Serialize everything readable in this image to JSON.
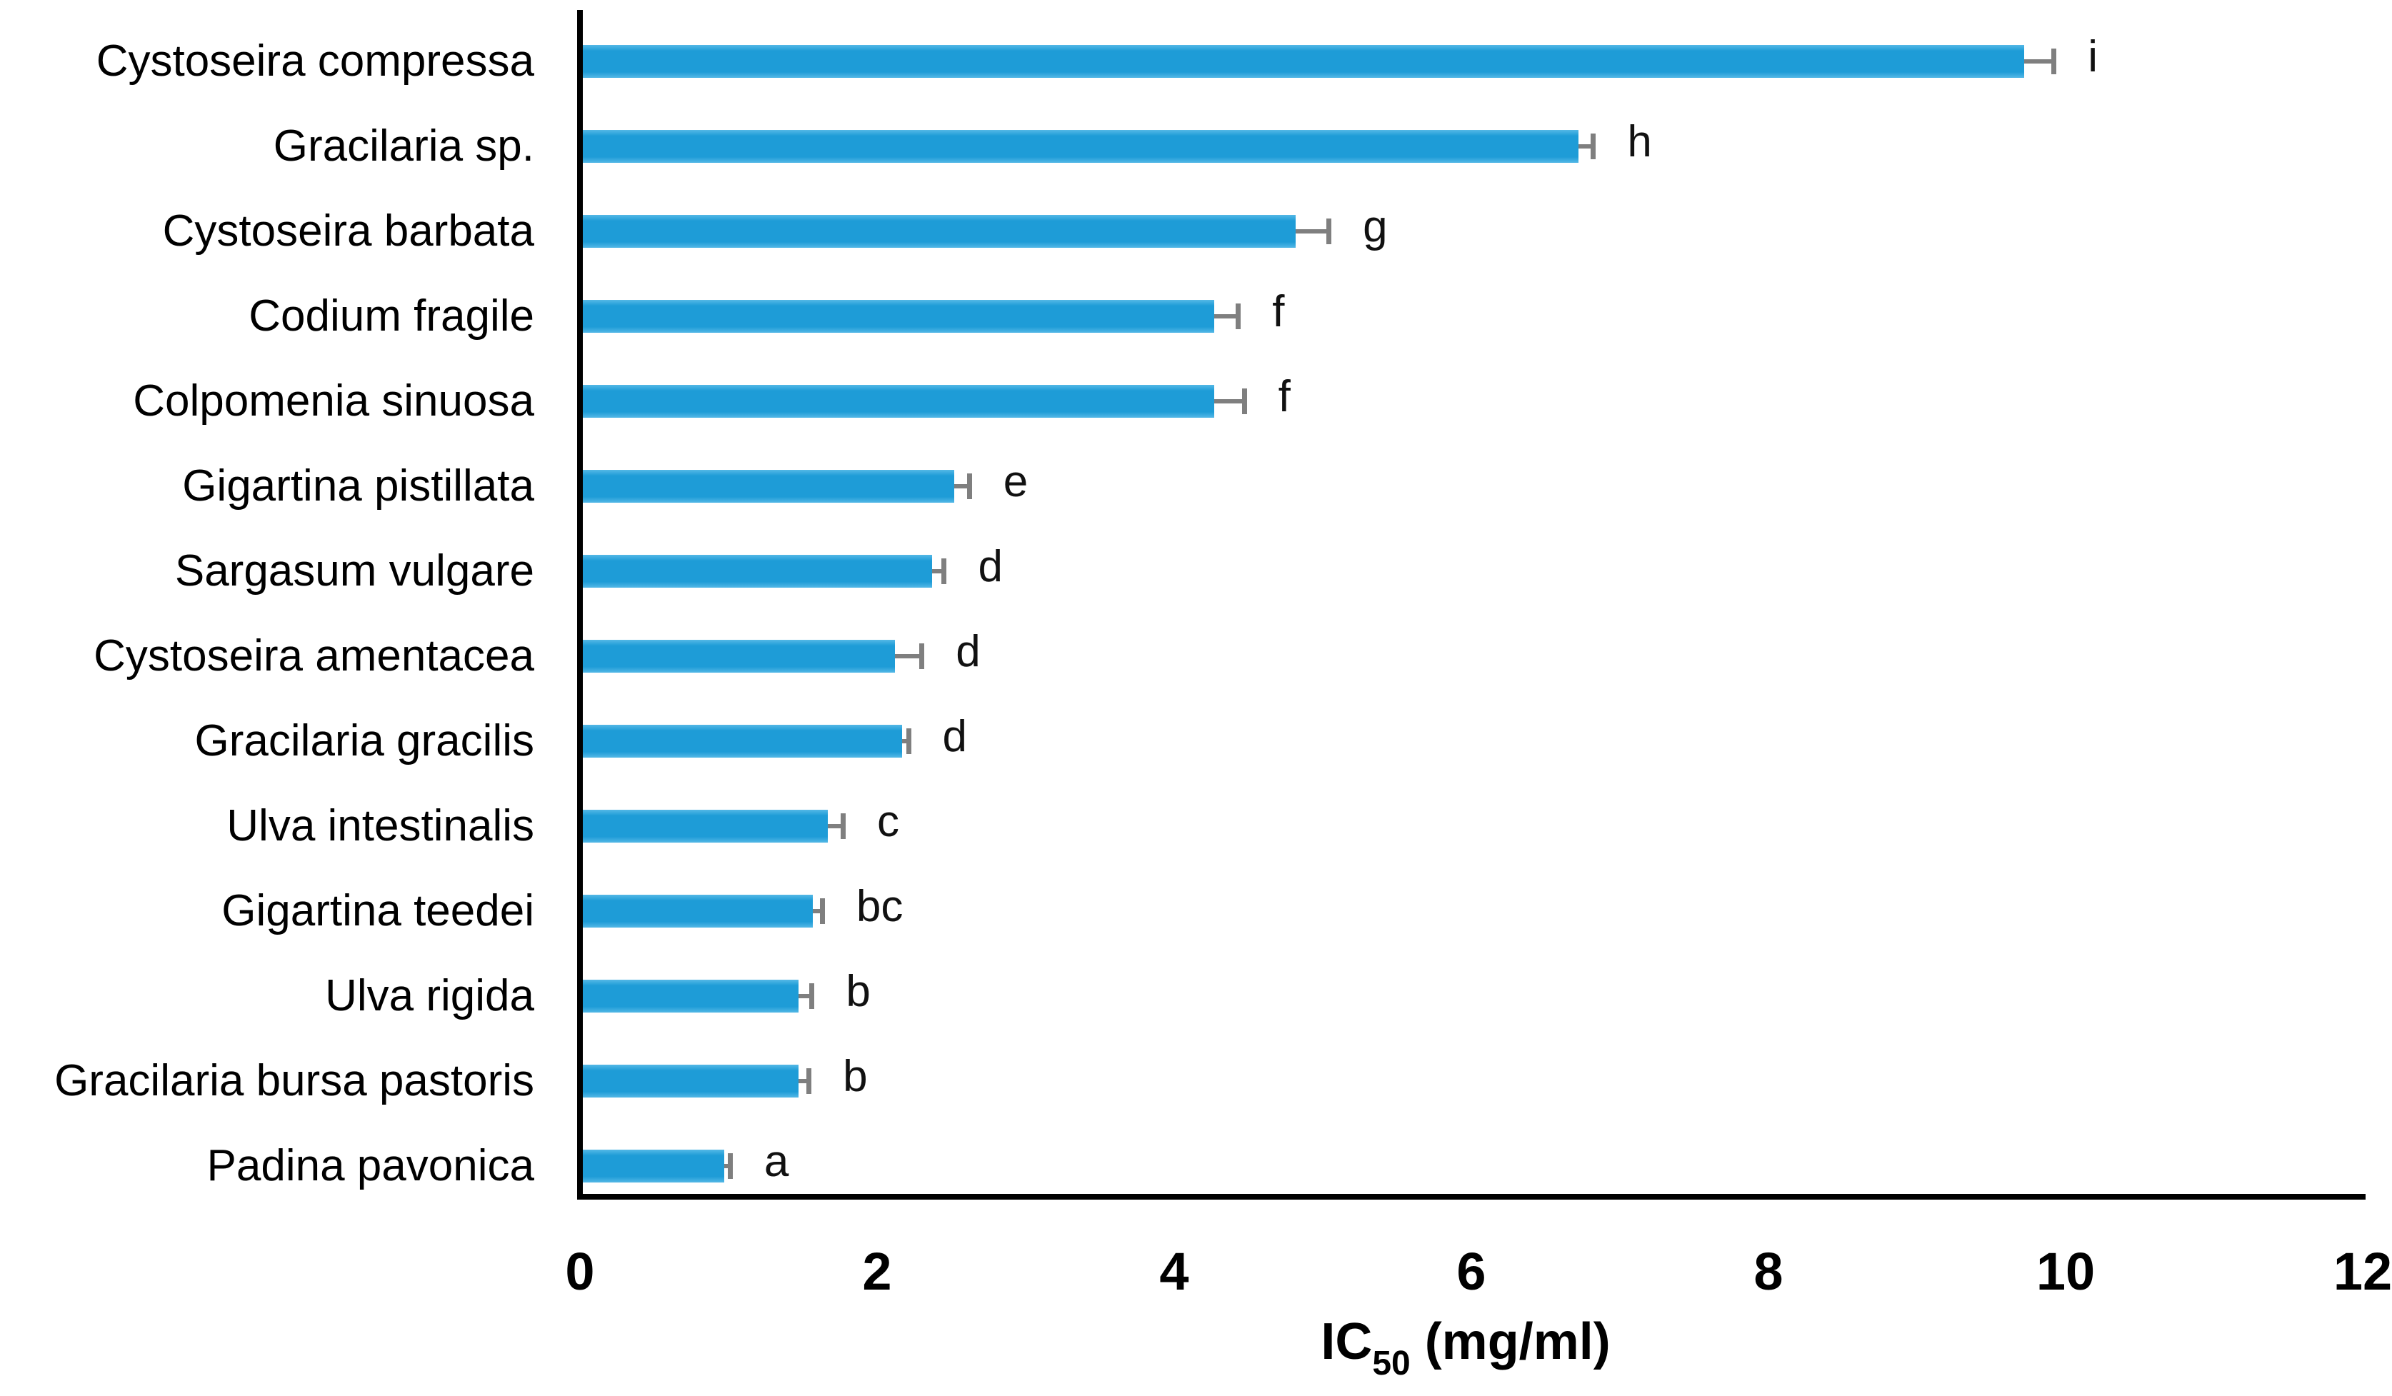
{
  "chart_data": {
    "type": "bar",
    "orientation": "horizontal",
    "title": "",
    "xlabel_prefix": "IC",
    "xlabel_sub": "50",
    "xlabel_suffix": " (mg/ml)",
    "xlim": [
      0,
      12
    ],
    "xticks": [
      "0",
      "2",
      "4",
      "6",
      "8",
      "10",
      "12"
    ],
    "grid": false,
    "legend": false,
    "categories": [
      "Cystoseira compressa",
      "Gracilaria sp.",
      "Cystoseira barbata",
      "Codium fragile",
      "Colpomenia sinuosa",
      "Gigartina pistillata",
      "Sargasum vulgare",
      "Cystoseira amentacea",
      "Gracilaria gracilis",
      "Ulva intestinalis",
      "Gigartina teedei",
      "Ulva rigida",
      "Gracilaria bursa pastoris",
      "Padina pavonica"
    ],
    "series": [
      {
        "name": "IC50 (mg/ml)",
        "values": [
          9.7,
          6.7,
          4.8,
          4.25,
          4.25,
          2.5,
          2.35,
          2.1,
          2.15,
          1.65,
          1.55,
          1.45,
          1.45,
          0.95
        ],
        "errors": [
          0.2,
          0.1,
          0.22,
          0.16,
          0.2,
          0.1,
          0.08,
          0.18,
          0.04,
          0.1,
          0.06,
          0.09,
          0.07,
          0.04
        ]
      }
    ],
    "sig_letters": [
      "i",
      "h",
      "g",
      "f",
      "f",
      "e",
      "d",
      "d",
      "d",
      "c",
      "bc",
      "b",
      "b",
      "a"
    ],
    "bar_color": "#1E9CD7",
    "error_color": "#7F7F7F",
    "axis_color": "#000000",
    "text_color": "#000000"
  }
}
